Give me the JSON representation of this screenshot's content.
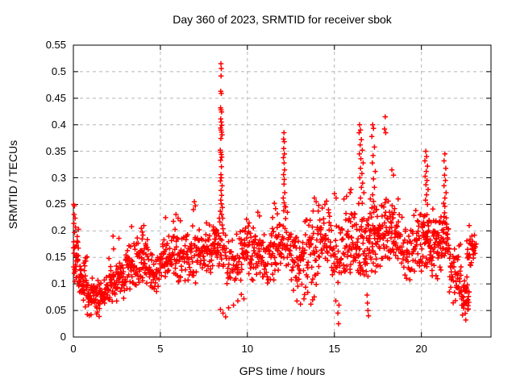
{
  "chart_data": {
    "type": "scatter",
    "title": "Day 360 of 2023, SRMTID for receiver sbok",
    "xlabel": "GPS time / hours",
    "ylabel": "SRMTID / TECUs",
    "xlim": [
      0,
      24
    ],
    "ylim": [
      0,
      0.55
    ],
    "xticks": [
      0,
      5,
      10,
      15,
      20
    ],
    "xtick_labels": [
      "0",
      "5",
      "10",
      "15",
      "20"
    ],
    "yticks": [
      0,
      0.05,
      0.1,
      0.15,
      0.2,
      0.25,
      0.3,
      0.35,
      0.4,
      0.45,
      0.5,
      0.55
    ],
    "ytick_labels": [
      "0",
      "0.05",
      "0.1",
      "0.15",
      "0.2",
      "0.25",
      "0.3",
      "0.35",
      "0.4",
      "0.45",
      "0.5",
      "0.55"
    ],
    "grid": true,
    "legend": null,
    "marker": {
      "shape": "plus",
      "color": "#ff0000",
      "size": 7
    },
    "grid_color": "#b5b5b5",
    "axis_color": "#000000",
    "seed": 42,
    "band_fields": [
      "h_start",
      "h_end",
      "count",
      "y_min",
      "y_max"
    ],
    "density_bands": [
      [
        0.0,
        0.3,
        30,
        0.09,
        0.21
      ],
      [
        0.3,
        0.8,
        45,
        0.05,
        0.16
      ],
      [
        0.8,
        1.8,
        75,
        0.035,
        0.115
      ],
      [
        1.8,
        2.45,
        40,
        0.05,
        0.135
      ],
      [
        2.45,
        3.0,
        38,
        0.065,
        0.155
      ],
      [
        3.0,
        3.6,
        42,
        0.08,
        0.185
      ],
      [
        3.6,
        4.3,
        48,
        0.075,
        0.205
      ],
      [
        4.3,
        5.0,
        42,
        0.07,
        0.16
      ],
      [
        5.0,
        5.6,
        40,
        0.1,
        0.2
      ],
      [
        5.6,
        6.4,
        48,
        0.1,
        0.21
      ],
      [
        6.4,
        7.2,
        48,
        0.09,
        0.225
      ],
      [
        7.2,
        8.0,
        48,
        0.11,
        0.215
      ],
      [
        8.0,
        8.4,
        30,
        0.12,
        0.24
      ],
      [
        8.4,
        8.8,
        16,
        0.12,
        0.2
      ],
      [
        8.8,
        9.6,
        45,
        0.09,
        0.2
      ],
      [
        9.6,
        10.5,
        55,
        0.1,
        0.22
      ],
      [
        10.5,
        11.3,
        48,
        0.09,
        0.2
      ],
      [
        11.3,
        11.95,
        42,
        0.1,
        0.24
      ],
      [
        11.95,
        12.45,
        24,
        0.12,
        0.23
      ],
      [
        12.45,
        13.2,
        50,
        0.08,
        0.215
      ],
      [
        13.2,
        14.0,
        50,
        0.07,
        0.24
      ],
      [
        14.0,
        14.8,
        48,
        0.1,
        0.25
      ],
      [
        14.8,
        15.6,
        42,
        0.07,
        0.23
      ],
      [
        15.6,
        16.2,
        42,
        0.11,
        0.265
      ],
      [
        16.2,
        17.0,
        58,
        0.09,
        0.26
      ],
      [
        17.0,
        17.6,
        52,
        0.11,
        0.27
      ],
      [
        17.6,
        18.15,
        40,
        0.12,
        0.27
      ],
      [
        18.15,
        18.7,
        42,
        0.11,
        0.27
      ],
      [
        18.7,
        19.5,
        44,
        0.1,
        0.24
      ],
      [
        19.5,
        20.1,
        40,
        0.1,
        0.25
      ],
      [
        20.1,
        20.6,
        44,
        0.11,
        0.25
      ],
      [
        20.6,
        21.15,
        44,
        0.1,
        0.25
      ],
      [
        21.15,
        21.6,
        38,
        0.12,
        0.25
      ],
      [
        21.6,
        22.3,
        48,
        0.06,
        0.18
      ],
      [
        22.3,
        22.75,
        40,
        0.035,
        0.115
      ],
      [
        22.6,
        23.0,
        22,
        0.13,
        0.2
      ],
      [
        22.95,
        23.15,
        8,
        0.15,
        0.19
      ]
    ],
    "notable_points": [
      [
        0.02,
        0.25
      ],
      [
        0.06,
        0.247
      ],
      [
        0.04,
        0.231
      ],
      [
        0.1,
        0.224
      ],
      [
        0.03,
        0.214
      ],
      [
        0.12,
        0.207
      ],
      [
        0.07,
        0.197
      ],
      [
        2.28,
        0.19
      ],
      [
        2.31,
        0.166
      ],
      [
        2.62,
        0.186
      ],
      [
        2.05,
        0.148
      ],
      [
        3.35,
        0.208
      ],
      [
        3.9,
        0.205
      ],
      [
        3.96,
        0.198
      ],
      [
        4.05,
        0.21
      ],
      [
        4.0,
        0.192
      ],
      [
        5.3,
        0.225
      ],
      [
        5.75,
        0.218
      ],
      [
        5.9,
        0.231
      ],
      [
        6.02,
        0.224
      ],
      [
        6.15,
        0.219
      ],
      [
        6.9,
        0.24
      ],
      [
        6.95,
        0.255
      ],
      [
        7.01,
        0.247
      ],
      [
        7.65,
        0.215
      ],
      [
        7.82,
        0.211
      ],
      [
        8.42,
        0.217
      ],
      [
        8.44,
        0.237
      ],
      [
        8.44,
        0.352
      ],
      [
        8.45,
        0.294
      ],
      [
        8.46,
        0.333
      ],
      [
        8.46,
        0.394
      ],
      [
        8.46,
        0.432
      ],
      [
        8.47,
        0.258
      ],
      [
        8.47,
        0.348
      ],
      [
        8.47,
        0.411
      ],
      [
        8.47,
        0.463
      ],
      [
        8.48,
        0.306
      ],
      [
        8.48,
        0.374
      ],
      [
        8.48,
        0.515
      ],
      [
        8.49,
        0.276
      ],
      [
        8.49,
        0.39
      ],
      [
        8.49,
        0.428
      ],
      [
        8.49,
        0.492
      ],
      [
        8.5,
        0.251
      ],
      [
        8.5,
        0.3
      ],
      [
        8.5,
        0.344
      ],
      [
        8.5,
        0.405
      ],
      [
        8.5,
        0.459
      ],
      [
        8.5,
        0.506
      ],
      [
        8.51,
        0.321
      ],
      [
        8.52,
        0.231
      ],
      [
        8.52,
        0.267
      ],
      [
        8.52,
        0.386
      ],
      [
        8.52,
        0.424
      ],
      [
        8.53,
        0.339
      ],
      [
        8.53,
        0.399
      ],
      [
        8.55,
        0.211
      ],
      [
        8.55,
        0.285
      ],
      [
        8.55,
        0.381
      ],
      [
        8.56,
        0.244
      ],
      [
        8.58,
        0.224
      ],
      [
        8.6,
        0.204
      ],
      [
        8.62,
        0.196
      ],
      [
        8.45,
        0.052
      ],
      [
        8.6,
        0.045
      ],
      [
        8.75,
        0.038
      ],
      [
        8.92,
        0.055
      ],
      [
        9.2,
        0.06
      ],
      [
        9.45,
        0.068
      ],
      [
        9.65,
        0.08
      ],
      [
        9.8,
        0.072
      ],
      [
        9.95,
        0.222
      ],
      [
        10.1,
        0.215
      ],
      [
        10.6,
        0.235
      ],
      [
        10.7,
        0.228
      ],
      [
        11.45,
        0.225
      ],
      [
        11.55,
        0.252
      ],
      [
        11.62,
        0.242
      ],
      [
        11.72,
        0.232
      ],
      [
        12.1,
        0.385
      ],
      [
        12.08,
        0.373
      ],
      [
        12.12,
        0.368
      ],
      [
        12.09,
        0.355
      ],
      [
        12.13,
        0.345
      ],
      [
        12.07,
        0.338
      ],
      [
        12.11,
        0.328
      ],
      [
        12.14,
        0.315
      ],
      [
        12.08,
        0.306
      ],
      [
        12.12,
        0.297
      ],
      [
        12.1,
        0.288
      ],
      [
        12.15,
        0.272
      ],
      [
        12.06,
        0.262
      ],
      [
        12.11,
        0.253
      ],
      [
        12.16,
        0.246
      ],
      [
        12.09,
        0.238
      ],
      [
        12.2,
        0.245
      ],
      [
        12.3,
        0.235
      ],
      [
        12.65,
        0.088
      ],
      [
        12.85,
        0.068
      ],
      [
        13.05,
        0.062
      ],
      [
        13.25,
        0.072
      ],
      [
        13.65,
        0.062
      ],
      [
        13.75,
        0.07
      ],
      [
        13.85,
        0.262
      ],
      [
        13.95,
        0.255
      ],
      [
        14.1,
        0.248
      ],
      [
        14.3,
        0.243
      ],
      [
        14.45,
        0.25
      ],
      [
        14.55,
        0.256
      ],
      [
        15.0,
        0.27
      ],
      [
        15.1,
        0.262
      ],
      [
        15.24,
        0.025
      ],
      [
        15.2,
        0.045
      ],
      [
        15.26,
        0.06
      ],
      [
        15.08,
        0.068
      ],
      [
        15.55,
        0.26
      ],
      [
        15.7,
        0.265
      ],
      [
        15.9,
        0.272
      ],
      [
        15.95,
        0.278
      ],
      [
        16.42,
        0.385
      ],
      [
        16.45,
        0.4
      ],
      [
        16.5,
        0.39
      ],
      [
        16.55,
        0.372
      ],
      [
        16.48,
        0.362
      ],
      [
        16.6,
        0.352
      ],
      [
        16.44,
        0.345
      ],
      [
        16.52,
        0.336
      ],
      [
        16.65,
        0.328
      ],
      [
        16.5,
        0.318
      ],
      [
        16.58,
        0.308
      ],
      [
        16.46,
        0.3
      ],
      [
        16.62,
        0.29
      ],
      [
        16.55,
        0.282
      ],
      [
        16.7,
        0.272
      ],
      [
        16.5,
        0.262
      ],
      [
        16.6,
        0.252
      ],
      [
        16.88,
        0.079
      ],
      [
        16.9,
        0.064
      ],
      [
        16.93,
        0.05
      ],
      [
        16.96,
        0.04
      ],
      [
        17.2,
        0.4
      ],
      [
        17.25,
        0.393
      ],
      [
        17.15,
        0.378
      ],
      [
        17.3,
        0.358
      ],
      [
        17.22,
        0.342
      ],
      [
        17.18,
        0.328
      ],
      [
        17.35,
        0.312
      ],
      [
        17.25,
        0.298
      ],
      [
        17.3,
        0.282
      ],
      [
        17.2,
        0.268
      ],
      [
        17.92,
        0.415
      ],
      [
        17.88,
        0.392
      ],
      [
        17.95,
        0.385
      ],
      [
        18.3,
        0.315
      ],
      [
        18.4,
        0.305
      ],
      [
        20.25,
        0.35
      ],
      [
        20.3,
        0.34
      ],
      [
        20.2,
        0.332
      ],
      [
        20.35,
        0.322
      ],
      [
        20.28,
        0.312
      ],
      [
        20.22,
        0.303
      ],
      [
        20.32,
        0.295
      ],
      [
        20.26,
        0.287
      ],
      [
        20.38,
        0.278
      ],
      [
        20.3,
        0.268
      ],
      [
        20.24,
        0.258
      ],
      [
        20.35,
        0.25
      ],
      [
        21.35,
        0.345
      ],
      [
        21.3,
        0.332
      ],
      [
        21.4,
        0.318
      ],
      [
        21.33,
        0.305
      ],
      [
        21.38,
        0.295
      ],
      [
        21.3,
        0.285
      ],
      [
        21.42,
        0.272
      ],
      [
        21.35,
        0.262
      ],
      [
        21.28,
        0.252
      ],
      [
        22.55,
        0.032
      ],
      [
        22.75,
        0.21
      ],
      [
        23.05,
        0.192
      ]
    ]
  }
}
